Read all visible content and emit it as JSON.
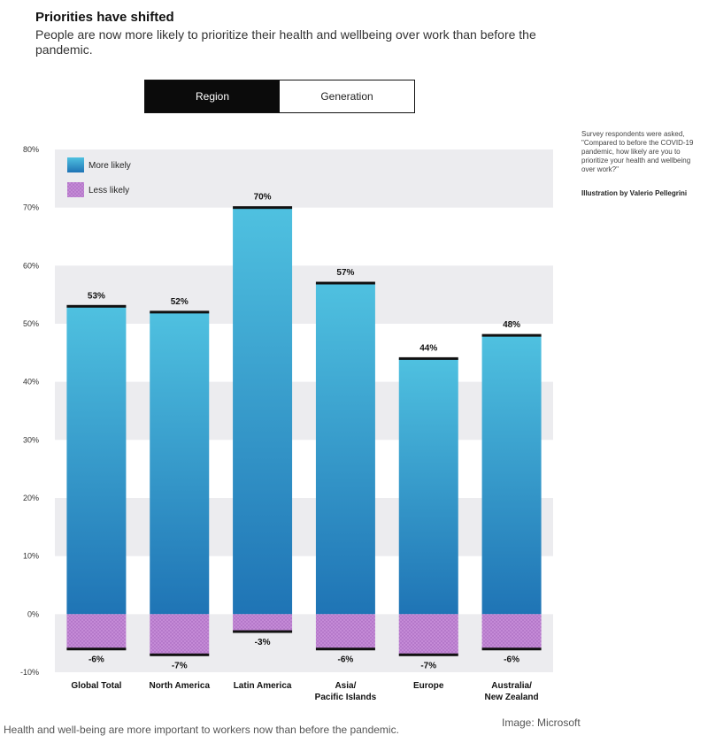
{
  "header": {
    "title": "Priorities have shifted",
    "subtitle": "People are now more likely to prioritize their health and wellbeing over work than before the pandemic."
  },
  "toggle": {
    "tabs": [
      {
        "label": "Region",
        "active": true
      },
      {
        "label": "Generation",
        "active": false
      }
    ]
  },
  "side_note": {
    "text": "Survey respondents were asked, \"Compared to before the COVID-19 pandemic, how likely are you to prioritize your health and wellbeing over work?\"",
    "credit": "Illustration by Valerio Pellegrini"
  },
  "footer": {
    "caption": "Health and well-being are more important to workers now than before the pandemic.",
    "source": "Image: Microsoft"
  },
  "colors": {
    "more_likely_top": "#4fc1e0",
    "more_likely_bottom": "#1f74b5",
    "less_likely": "#c48ad6",
    "band": "#ececef",
    "cap": "#111111"
  },
  "chart_data": {
    "type": "bar",
    "categories": [
      "Global Total",
      "North America",
      "Latin America",
      "Asia/\nPacific Islands",
      "Europe",
      "Australia/\nNew Zealand"
    ],
    "series": [
      {
        "name": "More likely",
        "values": [
          53,
          52,
          70,
          57,
          44,
          48
        ],
        "labels": [
          "53%",
          "52%",
          "70%",
          "57%",
          "44%",
          "48%"
        ]
      },
      {
        "name": "Less likely",
        "values": [
          -6,
          -7,
          -3,
          -6,
          -7,
          -6
        ],
        "labels": [
          "-6%",
          "-7%",
          "-3%",
          "-6%",
          "-7%",
          "-6%"
        ]
      }
    ],
    "y_ticks": [
      80,
      70,
      60,
      50,
      40,
      30,
      20,
      10,
      0,
      -10
    ],
    "y_tick_labels": [
      "80%",
      "70%",
      "60%",
      "50%",
      "40%",
      "30%",
      "20%",
      "10%",
      "0%",
      "-10%"
    ],
    "ylim": [
      -10,
      80
    ],
    "grid": "alternating bands",
    "legend_placement": "top-left"
  }
}
